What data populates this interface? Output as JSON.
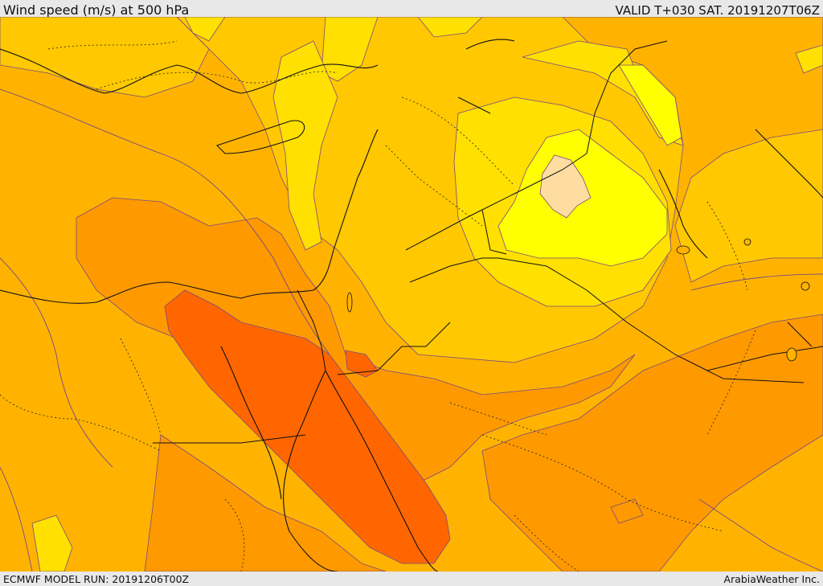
{
  "header": {
    "title": "Wind speed (m/s) at 500 hPa",
    "valid": "VALID T+030 SAT. 20191207T06Z"
  },
  "footer": {
    "model_run": "ECMWF MODEL RUN: 20191206T00Z",
    "credit": "ArabiaWeather Inc."
  },
  "colors": {
    "band_40": "#ff6600",
    "band_35": "#ff8000",
    "band_30": "#ff9900",
    "band_25": "#ffb300",
    "band_20": "#ffc800",
    "band_15": "#ffe000",
    "band_10": "#ffff00",
    "band_5": "#ffdca0",
    "contour": "#7a4a80",
    "coast": "#111111"
  }
}
